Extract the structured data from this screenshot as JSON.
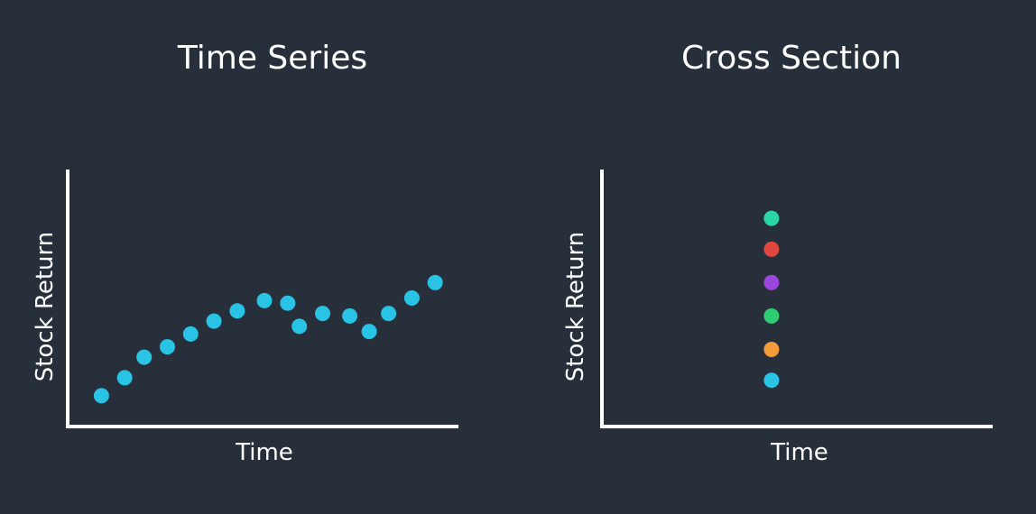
{
  "chart_data": [
    {
      "type": "scatter",
      "title": "Time Series",
      "xlabel": "Time",
      "ylabel": "Stock Return",
      "x_ticks": false,
      "y_ticks": false,
      "grid": false,
      "xlim": [
        0,
        100
      ],
      "ylim": [
        0,
        100
      ],
      "point_color": "#29c3e6",
      "points": [
        {
          "x": 8,
          "y": 12
        },
        {
          "x": 14,
          "y": 19
        },
        {
          "x": 19,
          "y": 27
        },
        {
          "x": 25,
          "y": 31
        },
        {
          "x": 31,
          "y": 36
        },
        {
          "x": 37,
          "y": 41
        },
        {
          "x": 43,
          "y": 45
        },
        {
          "x": 50,
          "y": 49
        },
        {
          "x": 56,
          "y": 48
        },
        {
          "x": 59,
          "y": 39
        },
        {
          "x": 65,
          "y": 44
        },
        {
          "x": 72,
          "y": 43
        },
        {
          "x": 77,
          "y": 37
        },
        {
          "x": 82,
          "y": 44
        },
        {
          "x": 88,
          "y": 50
        },
        {
          "x": 94,
          "y": 56
        }
      ]
    },
    {
      "type": "scatter",
      "title": "Cross Section",
      "xlabel": "Time",
      "ylabel": "Stock Return",
      "x_ticks": false,
      "y_ticks": false,
      "grid": false,
      "xlim": [
        0,
        100
      ],
      "ylim": [
        0,
        100
      ],
      "points": [
        {
          "x": 43,
          "y": 81,
          "color": "#2ad6a6"
        },
        {
          "x": 43,
          "y": 69,
          "color": "#e2473f"
        },
        {
          "x": 43,
          "y": 56,
          "color": "#9b45dc"
        },
        {
          "x": 43,
          "y": 43,
          "color": "#2ecc71"
        },
        {
          "x": 43,
          "y": 30,
          "color": "#f39a3a"
        },
        {
          "x": 43,
          "y": 18,
          "color": "#29c3e6"
        }
      ]
    }
  ]
}
